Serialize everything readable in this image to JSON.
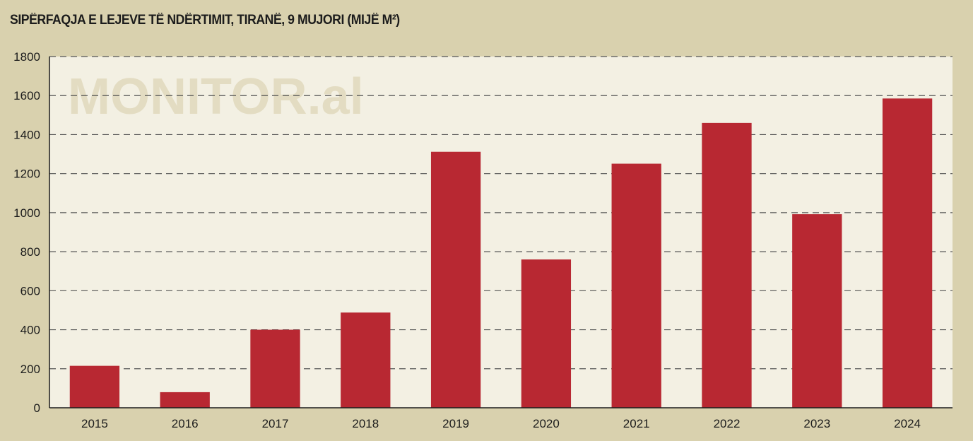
{
  "chart_data": {
    "type": "bar",
    "title": "SIPËRFAQJA E LEJEVE TË NDËRTIMIT, TIRANË, 9 MUJORI (MIJË M²)",
    "watermark": "MONITOR.al",
    "categories": [
      "2015",
      "2016",
      "2017",
      "2018",
      "2019",
      "2020",
      "2021",
      "2022",
      "2023",
      "2024"
    ],
    "values": [
      215,
      80,
      400,
      488,
      1312,
      760,
      1251,
      1460,
      992,
      1585
    ],
    "xlabel": "",
    "ylabel": "",
    "ylim": [
      0,
      1800
    ],
    "yticks": [
      0,
      200,
      400,
      600,
      800,
      1000,
      1200,
      1400,
      1600,
      1800
    ],
    "grid": "dashed horizontal",
    "legend": "none",
    "colors": {
      "bar": "#b82832",
      "plot_background": "#f3f0e3",
      "page_background": "#d9d1ae",
      "gridline": "#555555",
      "text": "#1c1c1c"
    }
  }
}
